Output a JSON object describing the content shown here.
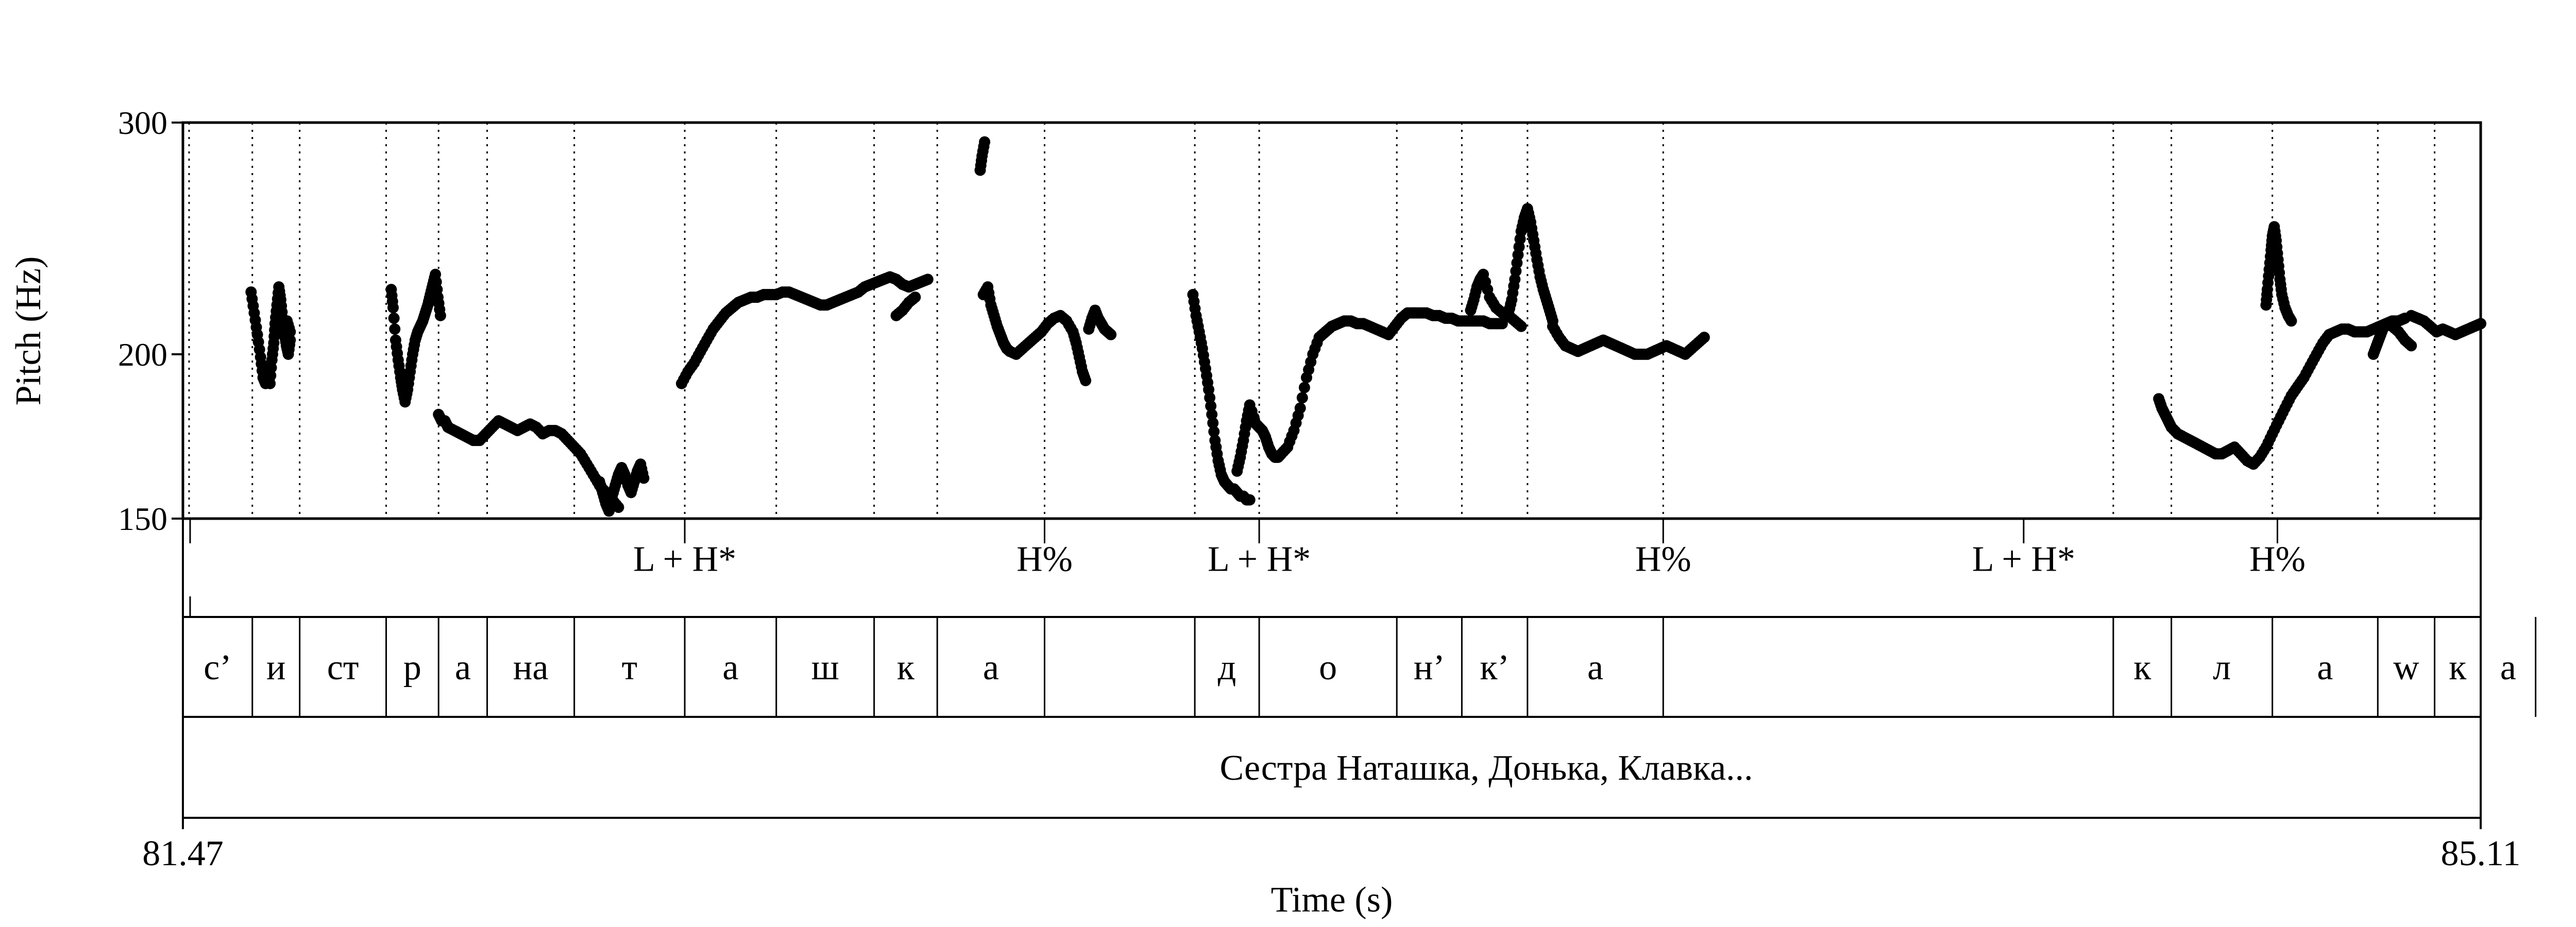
{
  "chart_data": {
    "type": "scatter",
    "title": "",
    "xlabel": "Time (s)",
    "ylabel": "Pitch (Hz)",
    "xlim": [
      81.47,
      85.11
    ],
    "ylim": [
      150,
      300
    ],
    "y_scale": "log",
    "x_ticks": [
      "81.47",
      "85.11"
    ],
    "y_ticks": [
      {
        "value": 150,
        "label": "150"
      },
      {
        "value": 200,
        "label": "200"
      },
      {
        "value": 300,
        "label": "300"
      }
    ],
    "pitch_series": [
      {
        "x": [
          81.578,
          81.583,
          81.588,
          81.593,
          81.597,
          81.601,
          81.605,
          81.608,
          81.611,
          81.614,
          81.616,
          81.619,
          81.622,
          81.625,
          81.628,
          81.631,
          81.634,
          81.637,
          81.64
        ],
        "y": [
          223,
          215,
          207,
          199,
          192,
          190,
          195,
          190,
          198,
          204,
          211,
          218,
          225,
          220,
          213,
          207,
          203,
          200,
          205
        ]
      },
      {
        "x": [
          81.635,
          81.64
        ],
        "y": [
          212,
          208
        ]
      },
      {
        "x": [
          81.8,
          81.803,
          81.807,
          81.811,
          81.815,
          81.818,
          81.822,
          81.826,
          81.83,
          81.834,
          81.838,
          81.842,
          81.846,
          81.85,
          81.854,
          81.858,
          81.862,
          81.866,
          81.87,
          81.874,
          81.878
        ],
        "y": [
          224,
          217,
          205,
          198,
          192,
          188,
          184,
          188,
          194,
          200,
          205,
          208,
          210,
          212,
          215,
          218,
          222,
          226,
          230,
          221,
          214
        ]
      },
      {
        "x": [
          81.875,
          81.88,
          81.885,
          81.89,
          81.9,
          81.91,
          81.92,
          81.93,
          81.94,
          81.95,
          81.96,
          81.97,
          81.98,
          81.99,
          82.0,
          82.01,
          82.02,
          82.03,
          82.04,
          82.05,
          82.06,
          82.07,
          82.08,
          82.09,
          82.1,
          82.11,
          82.12,
          82.13,
          82.14,
          82.15,
          82.16
        ],
        "y": [
          180,
          178,
          178,
          176,
          175,
          174,
          173,
          172,
          172,
          174,
          176,
          178,
          177,
          176,
          175,
          176,
          177,
          176,
          174,
          175,
          175,
          174,
          172,
          170,
          168,
          165,
          162,
          159,
          157,
          155,
          153
        ]
      },
      {
        "x": [
          82.13,
          82.135,
          82.14,
          82.145,
          82.15,
          82.155,
          82.16,
          82.165,
          82.17,
          82.175,
          82.18,
          82.185,
          82.19,
          82.195,
          82.2
        ],
        "y": [
          160,
          157,
          154,
          152,
          156,
          159,
          162,
          164,
          162,
          159,
          157,
          160,
          163,
          165,
          161
        ]
      },
      {
        "x": [
          82.26,
          82.27,
          82.28,
          82.29,
          82.3,
          82.31,
          82.32,
          82.33,
          82.34,
          82.35,
          82.36,
          82.37,
          82.38,
          82.39,
          82.4,
          82.41,
          82.42,
          82.43,
          82.44,
          82.45,
          82.46,
          82.47,
          82.48,
          82.49,
          82.5,
          82.51,
          82.52,
          82.53,
          82.54,
          82.55,
          82.56,
          82.57,
          82.58,
          82.59,
          82.6,
          82.61,
          82.62,
          82.63,
          82.64,
          82.65
        ],
        "y": [
          190,
          194,
          197,
          201,
          205,
          209,
          212,
          215,
          217,
          219,
          220,
          221,
          221,
          222,
          222,
          222,
          223,
          223,
          222,
          221,
          220,
          219,
          218,
          218,
          219,
          220,
          221,
          222,
          223,
          225,
          226,
          227,
          228,
          229,
          228,
          226,
          225,
          226,
          227,
          228
        ]
      },
      {
        "x": [
          82.6,
          82.61,
          82.62,
          82.63
        ],
        "y": [
          214,
          216,
          219,
          221
        ]
      },
      {
        "x": [
          82.733,
          82.736,
          82.74
        ],
        "y": [
          276,
          283,
          290
        ]
      },
      {
        "x": [
          82.738,
          82.745,
          82.75,
          82.755,
          82.76,
          82.765,
          82.77,
          82.775,
          82.78,
          82.79,
          82.8,
          82.81,
          82.82,
          82.83,
          82.84,
          82.85,
          82.86,
          82.87,
          82.88,
          82.885,
          82.89,
          82.895,
          82.9
        ],
        "y": [
          222,
          225,
          218,
          214,
          210,
          207,
          204,
          202,
          201,
          200,
          202,
          204,
          206,
          208,
          211,
          213,
          214,
          212,
          208,
          204,
          199,
          194,
          191
        ]
      },
      {
        "x": [
          82.905,
          82.91,
          82.915,
          82.92,
          82.925,
          82.93,
          82.935,
          82.94
        ],
        "y": [
          209,
          213,
          216,
          213,
          211,
          209,
          208,
          207
        ]
      },
      {
        "x": [
          83.07,
          83.075,
          83.08,
          83.085,
          83.09,
          83.095,
          83.1,
          83.105,
          83.11,
          83.115,
          83.12,
          83.125,
          83.13,
          83.135,
          83.14,
          83.145,
          83.15,
          83.155,
          83.16
        ],
        "y": [
          222,
          214,
          208,
          202,
          195,
          188,
          180,
          172,
          166,
          162,
          160,
          159,
          158,
          158,
          157,
          156,
          156,
          155,
          155
        ]
      },
      {
        "x": [
          83.14,
          83.145,
          83.15,
          83.155,
          83.16,
          83.17,
          83.175,
          83.18,
          83.185,
          83.19,
          83.195,
          83.2,
          83.205,
          83.21,
          83.22,
          83.23,
          83.24,
          83.25,
          83.26,
          83.27,
          83.28,
          83.29,
          83.3,
          83.31,
          83.32,
          83.33,
          83.34,
          83.35,
          83.36,
          83.37,
          83.38,
          83.39,
          83.4,
          83.41,
          83.42
        ],
        "y": [
          163,
          167,
          172,
          178,
          183,
          177,
          176,
          175,
          173,
          170,
          168,
          167,
          167,
          168,
          170,
          175,
          182,
          192,
          200,
          206,
          208,
          210,
          211,
          212,
          212,
          211,
          211,
          210,
          209,
          208,
          207,
          210,
          213,
          215,
          215
        ]
      },
      {
        "x": [
          83.42,
          83.43,
          83.44,
          83.45,
          83.46,
          83.47,
          83.48,
          83.49,
          83.5,
          83.51,
          83.52,
          83.53,
          83.54,
          83.55,
          83.56
        ],
        "y": [
          215,
          215,
          215,
          214,
          214,
          213,
          213,
          212,
          212,
          212,
          212,
          212,
          211,
          211,
          211
        ]
      },
      {
        "x": [
          83.51,
          83.515,
          83.52,
          83.525,
          83.53,
          83.54,
          83.55,
          83.56,
          83.57,
          83.58,
          83.59
        ],
        "y": [
          216,
          220,
          225,
          228,
          230,
          221,
          217,
          215,
          214,
          212,
          210
        ]
      },
      {
        "x": [
          83.57,
          83.575,
          83.58,
          83.585,
          83.59,
          83.595,
          83.6,
          83.605,
          83.61,
          83.615,
          83.62,
          83.625,
          83.63,
          83.635,
          83.64
        ],
        "y": [
          215,
          220,
          228,
          238,
          248,
          254,
          258,
          252,
          244,
          236,
          229,
          224,
          220,
          216,
          212
        ]
      },
      {
        "x": [
          83.64,
          83.65,
          83.66,
          83.67,
          83.68,
          83.69,
          83.7,
          83.71,
          83.72,
          83.73,
          83.74,
          83.75,
          83.76,
          83.77,
          83.78,
          83.79,
          83.8,
          83.81,
          83.82,
          83.83,
          83.84,
          83.85,
          83.86,
          83.87,
          83.88
        ],
        "y": [
          210,
          206,
          203,
          202,
          201,
          202,
          203,
          204,
          205,
          204,
          203,
          202,
          201,
          200,
          200,
          200,
          201,
          202,
          203,
          202,
          201,
          200,
          202,
          204,
          206
        ]
      },
      {
        "x": [
          84.6,
          84.605,
          84.61,
          84.615,
          84.62,
          84.63,
          84.64,
          84.65,
          84.66,
          84.67,
          84.68,
          84.69,
          84.7,
          84.71,
          84.72,
          84.73,
          84.74,
          84.75,
          84.76,
          84.77,
          84.78,
          84.79,
          84.8,
          84.81,
          84.82,
          84.83,
          84.84,
          84.85,
          84.86,
          84.87,
          84.88,
          84.89,
          84.9,
          84.91,
          84.92,
          84.93,
          84.94,
          84.95,
          84.96,
          84.97,
          84.98,
          84.99
        ],
        "y": [
          185,
          182,
          180,
          178,
          176,
          174,
          173,
          172,
          171,
          170,
          169,
          168,
          168,
          169,
          170,
          168,
          166,
          165,
          167,
          170,
          174,
          178,
          182,
          186,
          189,
          192,
          196,
          200,
          204,
          207,
          208,
          209,
          209,
          208,
          208,
          208,
          209,
          210,
          211,
          212,
          212,
          213
        ]
      },
      {
        "x": [
          85.0,
          85.01,
          85.02,
          85.03,
          85.04,
          85.05,
          85.06,
          85.07,
          85.08,
          85.09,
          85.1,
          85.11
        ],
        "y": [
          214,
          213,
          212,
          210,
          208,
          209,
          208,
          207,
          208,
          209,
          210,
          211
        ]
      },
      {
        "x": [
          84.94,
          84.945,
          84.95,
          84.955,
          84.96,
          84.97,
          84.98,
          84.99,
          85.0
        ],
        "y": [
          200,
          203,
          206,
          209,
          211,
          210,
          208,
          205,
          203
        ]
      },
      {
        "x": [
          84.77,
          84.772,
          84.775,
          84.778,
          84.78,
          84.783,
          84.786,
          84.789,
          84.792,
          84.795,
          84.8,
          84.805,
          84.81
        ],
        "y": [
          218,
          224,
          232,
          240,
          246,
          250,
          244,
          236,
          228,
          222,
          217,
          214,
          212
        ]
      }
    ],
    "boundaries": [
      81.58,
      81.655,
      81.792,
      81.875,
      81.952,
      82.09,
      82.265,
      82.41,
      82.565,
      82.665,
      82.835,
      83.073,
      83.175,
      83.393,
      83.496,
      83.6,
      83.815,
      84.528,
      84.62,
      84.78,
      84.947,
      85.037,
      85.197
    ],
    "tone_tier": {
      "labels": [
        {
          "t": 82.265,
          "text": "L + H*"
        },
        {
          "t": 82.835,
          "text": "H%"
        },
        {
          "t": 83.175,
          "text": "L + H*"
        },
        {
          "t": 83.815,
          "text": "H%"
        },
        {
          "t": 84.386,
          "text": "L + H*"
        },
        {
          "t": 84.788,
          "text": "H%"
        }
      ]
    },
    "segment_tier": {
      "intervals": [
        {
          "start": 81.47,
          "end": 81.58,
          "text": "с’"
        },
        {
          "start": 81.58,
          "end": 81.655,
          "text": "и"
        },
        {
          "start": 81.655,
          "end": 81.792,
          "text": "ст"
        },
        {
          "start": 81.792,
          "end": 81.875,
          "text": "р"
        },
        {
          "start": 81.875,
          "end": 81.952,
          "text": "а"
        },
        {
          "start": 81.952,
          "end": 82.09,
          "text": "на"
        },
        {
          "start": 82.09,
          "end": 82.265,
          "text": "т"
        },
        {
          "start": 82.265,
          "end": 82.41,
          "text": "а"
        },
        {
          "start": 82.41,
          "end": 82.565,
          "text": "ш"
        },
        {
          "start": 82.565,
          "end": 82.665,
          "text": "к"
        },
        {
          "start": 82.665,
          "end": 82.835,
          "text": "а"
        },
        {
          "start": 82.835,
          "end": 83.073,
          "text": ""
        },
        {
          "start": 83.073,
          "end": 83.175,
          "text": "д"
        },
        {
          "start": 83.175,
          "end": 83.393,
          "text": "о"
        },
        {
          "start": 83.393,
          "end": 83.496,
          "text": "н’"
        },
        {
          "start": 83.496,
          "end": 83.6,
          "text": "к’"
        },
        {
          "start": 83.6,
          "end": 83.815,
          "text": "а"
        },
        {
          "start": 83.815,
          "end": 84.528,
          "text": ""
        },
        {
          "start": 84.528,
          "end": 84.62,
          "text": "к"
        },
        {
          "start": 84.62,
          "end": 84.78,
          "text": "л"
        },
        {
          "start": 84.78,
          "end": 84.947,
          "text": "а"
        },
        {
          "start": 84.947,
          "end": 85.037,
          "text": "w"
        },
        {
          "start": 85.037,
          "end": 85.197,
          "text": "к"
        },
        {
          "start": 85.197,
          "end": 85.11,
          "text": "а"
        }
      ]
    },
    "sentence_tier": {
      "text": "Сестра Наташка, Донька, Клавка..."
    }
  }
}
